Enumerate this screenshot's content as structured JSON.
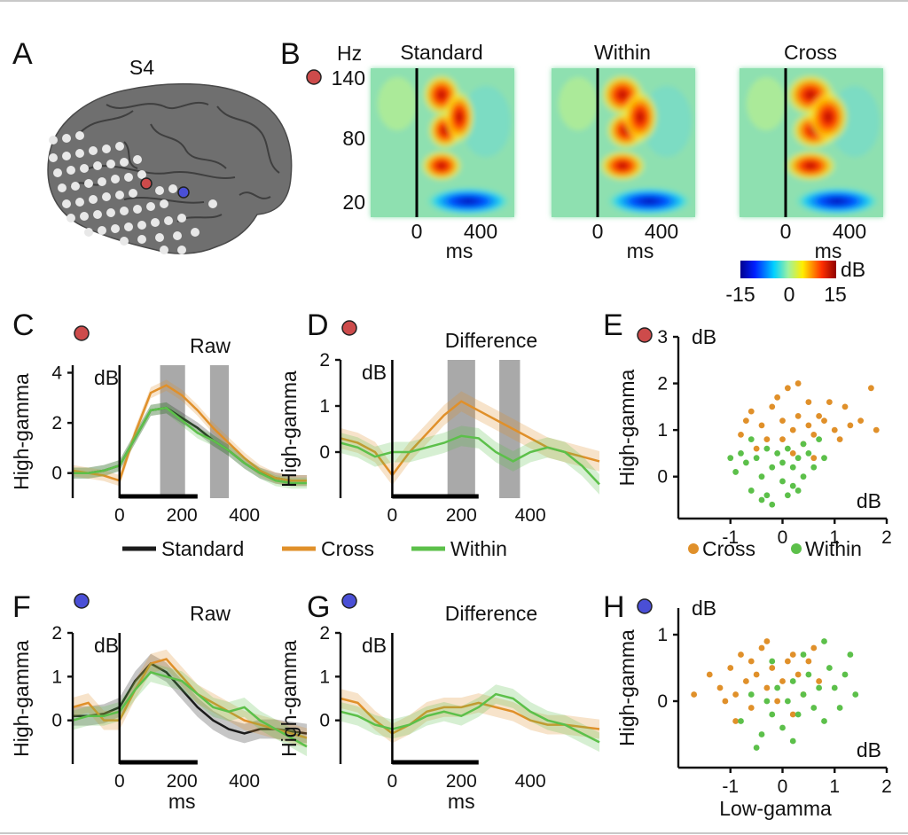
{
  "colors": {
    "standard": "#1b1b1b",
    "cross": "#e0902a",
    "within": "#5cc04a",
    "marker_red": "#cd4b4b",
    "marker_blue": "#4a4fd6",
    "shade": "#a9a9a9",
    "brain": "#707070",
    "electrode": "#e8e8e8"
  },
  "labels": {
    "A": "A",
    "B": "B",
    "C": "C",
    "D": "D",
    "E": "E",
    "F": "F",
    "G": "G",
    "H": "H"
  },
  "panelA": {
    "subject": "S4"
  },
  "panelB": {
    "hz_label": "Hz",
    "freq_ticks": [
      "140",
      "80",
      "20"
    ],
    "time_ticks": [
      "0",
      "400"
    ],
    "ms": "ms",
    "titles": [
      "Standard",
      "Within",
      "Cross"
    ],
    "colorbar": {
      "unit": "dB",
      "ticks": [
        "-15",
        "0",
        "15"
      ]
    }
  },
  "raw_title": "Raw",
  "diff_title": "Difference",
  "ylabel": "High-gamma",
  "unit": "dB",
  "ms": "ms",
  "xticks": [
    "0",
    "200",
    "400"
  ],
  "yticks_C": [
    "4",
    "2",
    "0"
  ],
  "yticks_D": [
    "2",
    "1",
    "0"
  ],
  "yticks_F": [
    "2",
    "1",
    "0"
  ],
  "yticks_G": [
    "2",
    "1",
    "0"
  ],
  "legend": {
    "standard": "Standard",
    "cross": "Cross",
    "within": "Within"
  },
  "scatter": {
    "xticks": [
      "-1",
      "0",
      "1",
      "2"
    ],
    "yticks_E": [
      "3",
      "2",
      "1",
      "0"
    ],
    "yticks_H": [
      "1",
      "0"
    ],
    "xlabel": "Low-gamma",
    "legend_cross": "Cross",
    "legend_within": "Within"
  },
  "chart_data": [
    {
      "id": "C",
      "type": "line",
      "title": "Raw",
      "ylabel": "High-gamma (dB)",
      "xlabel": "ms",
      "xlim": [
        -150,
        600
      ],
      "ylim": [
        -1,
        4.3
      ],
      "shaded": [
        [
          130,
          210
        ],
        [
          290,
          350
        ]
      ],
      "x": [
        -150,
        -100,
        -50,
        0,
        50,
        100,
        150,
        200,
        250,
        300,
        350,
        400,
        450,
        500,
        550,
        600
      ],
      "series": [
        {
          "name": "Standard",
          "values": [
            0,
            0,
            0.1,
            0.3,
            1.4,
            2.5,
            2.6,
            2.2,
            1.8,
            1.3,
            0.9,
            0.4,
            0,
            -0.2,
            -0.3,
            -0.3
          ]
        },
        {
          "name": "Cross",
          "values": [
            0.1,
            0,
            -0.1,
            -0.3,
            1.6,
            3.2,
            3.5,
            3.1,
            2.5,
            1.8,
            1.2,
            0.6,
            0.1,
            -0.2,
            -0.3,
            -0.3
          ]
        },
        {
          "name": "Within",
          "values": [
            0,
            0,
            0.1,
            0.3,
            1.4,
            2.5,
            2.6,
            2.1,
            1.6,
            1.3,
            0.9,
            0.4,
            0,
            -0.3,
            -0.4,
            -0.4
          ]
        }
      ]
    },
    {
      "id": "D",
      "type": "line",
      "title": "Difference",
      "ylabel": "High-gamma (dB)",
      "xlabel": "ms",
      "xlim": [
        -150,
        600
      ],
      "ylim": [
        -1,
        2
      ],
      "shaded": [
        [
          160,
          240
        ],
        [
          310,
          370
        ]
      ],
      "x": [
        -150,
        -100,
        -50,
        0,
        50,
        100,
        150,
        200,
        250,
        300,
        350,
        400,
        450,
        500,
        550,
        600
      ],
      "series": [
        {
          "name": "Cross",
          "values": [
            0.3,
            0.2,
            0,
            -0.5,
            0,
            0.4,
            0.8,
            1.1,
            0.9,
            0.7,
            0.5,
            0.3,
            0.1,
            0,
            -0.1,
            -0.2
          ]
        },
        {
          "name": "Within",
          "values": [
            0.2,
            0.1,
            -0.1,
            0,
            0,
            0.1,
            0.2,
            0.35,
            0.3,
            0,
            -0.2,
            0,
            0.1,
            0,
            -0.3,
            -0.7
          ]
        }
      ]
    },
    {
      "id": "E",
      "type": "scatter",
      "xlabel": "dB",
      "ylabel": "High-gamma (dB)",
      "xlim": [
        -2,
        2
      ],
      "ylim": [
        -0.9,
        3
      ],
      "series": [
        {
          "name": "Cross",
          "points": [
            [
              -0.6,
              1.4
            ],
            [
              -0.4,
              1.1
            ],
            [
              -0.3,
              0.8
            ],
            [
              -0.2,
              1.5
            ],
            [
              0,
              1.2
            ],
            [
              0,
              0.8
            ],
            [
              0.1,
              1.9
            ],
            [
              0.2,
              1.0
            ],
            [
              0.3,
              1.3
            ],
            [
              0.4,
              0.7
            ],
            [
              0.5,
              1.6
            ],
            [
              0.5,
              1.1
            ],
            [
              0.6,
              0.9
            ],
            [
              0.7,
              1.3
            ],
            [
              0.8,
              1.2
            ],
            [
              1.0,
              1.0
            ],
            [
              1.1,
              0.8
            ],
            [
              1.3,
              1.1
            ],
            [
              1.5,
              1.2
            ],
            [
              1.7,
              1.9
            ],
            [
              1.8,
              1.0
            ],
            [
              -0.8,
              0.9
            ],
            [
              -0.5,
              0.6
            ],
            [
              0.9,
              1.6
            ],
            [
              0.3,
              2.0
            ],
            [
              -0.1,
              1.7
            ],
            [
              0.2,
              0.5
            ],
            [
              0.6,
              0.4
            ],
            [
              1.2,
              1.5
            ],
            [
              -0.7,
              1.2
            ]
          ]
        },
        {
          "name": "Within",
          "points": [
            [
              -0.9,
              0.1
            ],
            [
              -0.8,
              0.5
            ],
            [
              -0.6,
              -0.3
            ],
            [
              -0.5,
              0.4
            ],
            [
              -0.4,
              0
            ],
            [
              -0.3,
              0.6
            ],
            [
              -0.3,
              -0.4
            ],
            [
              -0.2,
              0.2
            ],
            [
              -0.1,
              0.5
            ],
            [
              0,
              -0.1
            ],
            [
              0,
              0.3
            ],
            [
              0.1,
              0.6
            ],
            [
              0.2,
              -0.2
            ],
            [
              0.2,
              0.2
            ],
            [
              0.3,
              0.4
            ],
            [
              0.4,
              0
            ],
            [
              0.5,
              0.5
            ],
            [
              0.6,
              0.2
            ],
            [
              0.7,
              0.8
            ],
            [
              -0.7,
              0.3
            ],
            [
              -0.4,
              -0.5
            ],
            [
              0.1,
              -0.4
            ],
            [
              0.4,
              0.7
            ],
            [
              -0.2,
              -0.6
            ],
            [
              0.8,
              0.4
            ],
            [
              -0.6,
              0.8
            ],
            [
              0.3,
              -0.3
            ],
            [
              -1.0,
              0.4
            ]
          ]
        }
      ]
    },
    {
      "id": "F",
      "type": "line",
      "title": "Raw",
      "ylabel": "High-gamma (dB)",
      "xlabel": "ms",
      "xlim": [
        -150,
        600
      ],
      "ylim": [
        -1,
        2
      ],
      "x": [
        -150,
        -100,
        -50,
        0,
        50,
        100,
        150,
        200,
        250,
        300,
        350,
        400,
        450,
        500,
        550,
        600
      ],
      "series": [
        {
          "name": "Standard",
          "values": [
            0.1,
            0.1,
            0.15,
            0.3,
            0.9,
            1.3,
            1.1,
            0.7,
            0.3,
            0,
            -0.2,
            -0.3,
            -0.2,
            -0.2,
            -0.25,
            -0.3
          ]
        },
        {
          "name": "Cross",
          "values": [
            0.3,
            0.4,
            0,
            0,
            0.7,
            1.3,
            1.4,
            1.0,
            0.6,
            0.4,
            0.2,
            0,
            -0.1,
            -0.2,
            -0.3,
            -0.4
          ]
        },
        {
          "name": "Within",
          "values": [
            0,
            0.1,
            0.1,
            0.2,
            0.7,
            1.1,
            1.0,
            0.9,
            0.6,
            0.3,
            0.2,
            0.3,
            0,
            -0.2,
            -0.4,
            -0.6
          ]
        }
      ]
    },
    {
      "id": "G",
      "type": "line",
      "title": "Difference",
      "ylabel": "High-gamma (dB)",
      "xlabel": "ms",
      "xlim": [
        -150,
        600
      ],
      "ylim": [
        -1,
        2
      ],
      "x": [
        -150,
        -100,
        -50,
        0,
        50,
        100,
        150,
        200,
        250,
        300,
        350,
        400,
        450,
        500,
        550,
        600
      ],
      "series": [
        {
          "name": "Cross",
          "values": [
            0.5,
            0.4,
            0,
            -0.3,
            -0.1,
            0.2,
            0.3,
            0.3,
            0.4,
            0.3,
            0.2,
            0,
            -0.1,
            -0.1,
            -0.15,
            -0.2
          ]
        },
        {
          "name": "Within",
          "values": [
            0.2,
            0.1,
            -0.1,
            -0.2,
            -0.1,
            0.1,
            0.2,
            0.1,
            0.3,
            0.6,
            0.5,
            0.2,
            0,
            -0.1,
            -0.3,
            -0.5
          ]
        }
      ]
    },
    {
      "id": "H",
      "type": "scatter",
      "xlabel": "Low-gamma (dB)",
      "ylabel": "High-gamma (dB)",
      "xlim": [
        -2,
        2
      ],
      "ylim": [
        -1,
        1.4
      ],
      "series": [
        {
          "name": "Cross",
          "points": [
            [
              -1.4,
              0.4
            ],
            [
              -1.2,
              0.2
            ],
            [
              -1.0,
              0.5
            ],
            [
              -0.9,
              0.1
            ],
            [
              -0.8,
              0.7
            ],
            [
              -0.7,
              0.3
            ],
            [
              -0.6,
              -0.1
            ],
            [
              -0.5,
              0.4
            ],
            [
              -0.4,
              0.8
            ],
            [
              -0.3,
              0.2
            ],
            [
              -0.2,
              0.5
            ],
            [
              -0.1,
              0
            ],
            [
              0,
              0.3
            ],
            [
              0.1,
              0.6
            ],
            [
              0.2,
              -0.2
            ],
            [
              0.3,
              0.4
            ],
            [
              0.4,
              0.1
            ],
            [
              0.5,
              0.6
            ],
            [
              0.7,
              0.3
            ],
            [
              -0.6,
              0.6
            ],
            [
              -0.9,
              -0.3
            ],
            [
              -0.3,
              0.9
            ],
            [
              0.6,
              0.8
            ],
            [
              -1.1,
              0.0
            ],
            [
              0.2,
              0.7
            ],
            [
              -1.7,
              0.1
            ]
          ]
        },
        {
          "name": "Within",
          "points": [
            [
              -0.8,
              -0.3
            ],
            [
              -0.6,
              0.1
            ],
            [
              -0.4,
              -0.5
            ],
            [
              -0.3,
              0
            ],
            [
              -0.2,
              -0.2
            ],
            [
              -0.1,
              0.2
            ],
            [
              0,
              -0.4
            ],
            [
              0.1,
              0
            ],
            [
              0.2,
              0.3
            ],
            [
              0.3,
              -0.2
            ],
            [
              0.4,
              0.1
            ],
            [
              0.5,
              0.4
            ],
            [
              0.6,
              -0.1
            ],
            [
              0.7,
              0.2
            ],
            [
              0.8,
              -0.3
            ],
            [
              0.9,
              0.5
            ],
            [
              1.0,
              0.2
            ],
            [
              1.1,
              -0.1
            ],
            [
              1.2,
              0.4
            ],
            [
              1.3,
              0.7
            ],
            [
              0.2,
              -0.6
            ],
            [
              -0.5,
              -0.7
            ],
            [
              0.4,
              0.7
            ],
            [
              0.8,
              0.9
            ],
            [
              1.4,
              0.1
            ],
            [
              -0.2,
              0.6
            ]
          ]
        }
      ]
    }
  ]
}
